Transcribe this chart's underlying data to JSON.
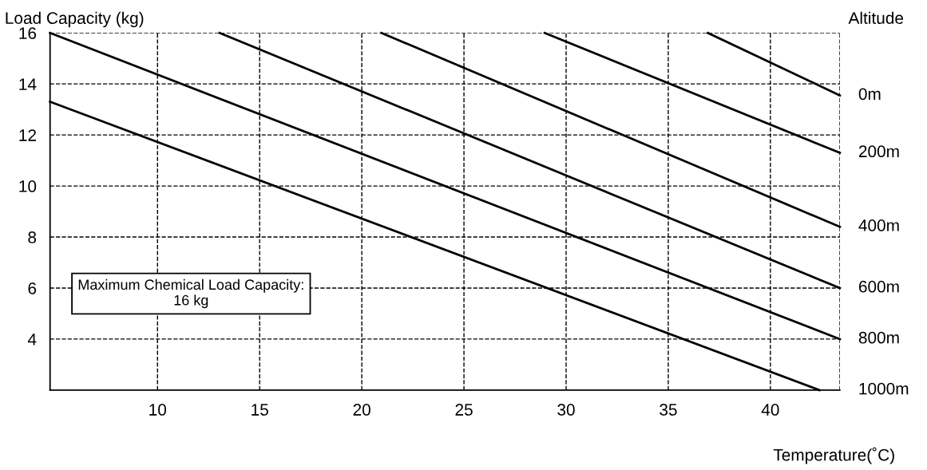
{
  "chart_data": {
    "type": "line",
    "xlabel": "Temperature(˚C)",
    "ylabel": "Load Capacity (kg)",
    "legend_title": "Altitude",
    "series": [
      {
        "name": "0m",
        "color": "#000000",
        "x": [
          36.94,
          43.4
        ],
        "values": [
          16,
          13.55
        ]
      },
      {
        "name": "200m",
        "color": "#000000",
        "x": [
          28.95,
          43.4
        ],
        "values": [
          16,
          11.3
        ]
      },
      {
        "name": "400m",
        "color": "#000000",
        "x": [
          20.96,
          43.4
        ],
        "values": [
          16,
          8.4
        ]
      },
      {
        "name": "600m",
        "color": "#000000",
        "x": [
          13.04,
          43.4
        ],
        "values": [
          16,
          6.0
        ]
      },
      {
        "name": "800m",
        "color": "#000000",
        "x": [
          4.74,
          43.4
        ],
        "values": [
          16,
          4.0
        ]
      },
      {
        "name": "1000m",
        "color": "#000000",
        "x": [
          4.74,
          42.4
        ],
        "values": [
          13.3,
          2.0
        ]
      }
    ],
    "xlim": [
      4.74,
      43.4
    ],
    "ylim": [
      2,
      16
    ],
    "xticks": [
      10,
      15,
      20,
      25,
      30,
      35,
      40,
      {
        "value": 43.4,
        "label": null
      }
    ],
    "yticks": [
      4,
      6,
      8,
      10,
      12,
      14,
      16
    ],
    "grid": true,
    "line_style": "solid",
    "marker": "none",
    "annotations": [
      "Maximum Chemical Load Capacity:\n16 kg"
    ]
  }
}
